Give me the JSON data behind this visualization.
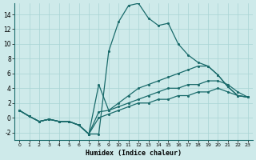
{
  "xlabel": "Humidex (Indice chaleur)",
  "background_color": "#ceeaea",
  "grid_color": "#a8d4d4",
  "line_color": "#1a6b6b",
  "xlim": [
    -0.5,
    23.5
  ],
  "ylim": [
    -3,
    15.5
  ],
  "xticks": [
    0,
    1,
    2,
    3,
    4,
    5,
    6,
    7,
    8,
    9,
    10,
    11,
    12,
    13,
    14,
    15,
    16,
    17,
    18,
    19,
    20,
    21,
    22,
    23
  ],
  "yticks": [
    -2,
    0,
    2,
    4,
    6,
    8,
    10,
    12,
    14
  ],
  "series": [
    {
      "x": [
        0,
        1,
        2,
        3,
        4,
        5,
        6,
        7,
        8,
        9,
        10,
        11,
        12,
        13,
        14,
        15,
        16,
        17,
        18,
        19,
        20,
        21,
        22,
        23
      ],
      "y": [
        1,
        0.2,
        -0.5,
        -0.2,
        -0.5,
        -0.5,
        -1.0,
        -2.2,
        -2.2,
        9,
        13,
        15.2,
        15.5,
        13.5,
        12.5,
        12.8,
        10,
        8.5,
        7.5,
        7,
        5.8,
        4.2,
        3,
        2.8
      ]
    },
    {
      "x": [
        0,
        1,
        2,
        3,
        4,
        5,
        6,
        7,
        8,
        9,
        10,
        11,
        12,
        13,
        14,
        15,
        16,
        17,
        18,
        19,
        20,
        21,
        22,
        23
      ],
      "y": [
        1,
        0.2,
        -0.5,
        -0.2,
        -0.5,
        -0.5,
        -1.0,
        -2.2,
        4.5,
        1,
        2,
        3,
        4,
        4.5,
        5,
        5.5,
        6,
        6.5,
        7,
        7,
        5.8,
        4.2,
        3,
        2.8
      ]
    },
    {
      "x": [
        0,
        1,
        2,
        3,
        4,
        5,
        6,
        7,
        8,
        9,
        10,
        11,
        12,
        13,
        14,
        15,
        16,
        17,
        18,
        19,
        20,
        21,
        22,
        23
      ],
      "y": [
        1,
        0.2,
        -0.5,
        -0.2,
        -0.5,
        -0.5,
        -1.0,
        -2.2,
        0.8,
        1,
        1.5,
        2,
        2.5,
        3,
        3.5,
        4,
        4,
        4.5,
        4.5,
        5,
        5,
        4.5,
        3.5,
        2.8
      ]
    },
    {
      "x": [
        0,
        1,
        2,
        3,
        4,
        5,
        6,
        7,
        8,
        9,
        10,
        11,
        12,
        13,
        14,
        15,
        16,
        17,
        18,
        19,
        20,
        21,
        22,
        23
      ],
      "y": [
        1,
        0.2,
        -0.5,
        -0.2,
        -0.5,
        -0.5,
        -1.0,
        -2.2,
        0,
        0.5,
        1,
        1.5,
        2,
        2,
        2.5,
        2.5,
        3,
        3,
        3.5,
        3.5,
        4,
        3.5,
        3,
        2.8
      ]
    }
  ]
}
